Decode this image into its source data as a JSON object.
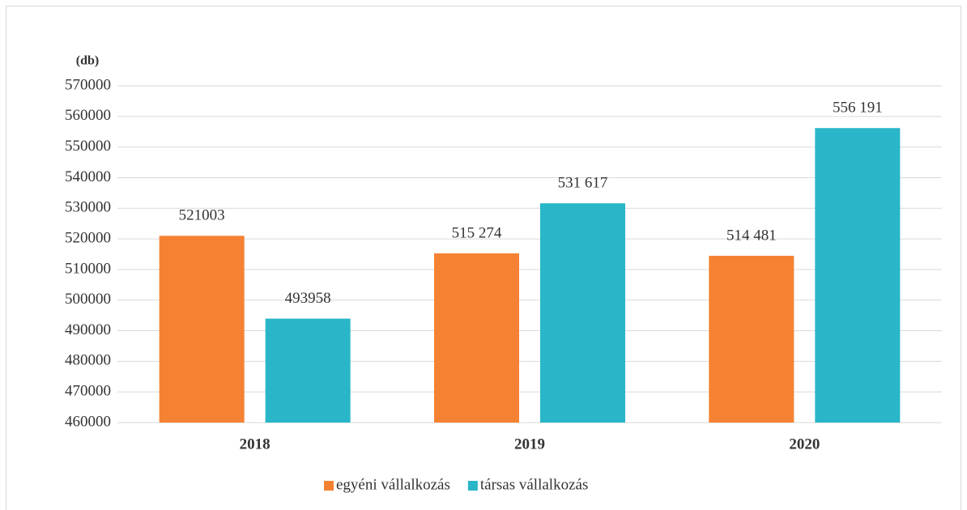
{
  "chart_data": {
    "type": "bar",
    "y_label": "(db)",
    "categories": [
      "2018",
      "2019",
      "2020"
    ],
    "series": [
      {
        "name": "egyéni vállalkozás",
        "color": "#f58232",
        "values": [
          521003,
          515274,
          514481
        ],
        "value_labels": [
          "521003",
          "515 274",
          "514 481"
        ]
      },
      {
        "name": "társas vállalkozás",
        "color": "#29b6c8",
        "values": [
          493958,
          531617,
          556191
        ],
        "value_labels": [
          "493958",
          "531 617",
          "556 191"
        ]
      }
    ],
    "ylim": [
      460000,
      570000
    ],
    "yticks": [
      460000,
      470000,
      480000,
      490000,
      500000,
      510000,
      520000,
      530000,
      540000,
      550000,
      560000,
      570000
    ],
    "grid": true,
    "legend": "bottom"
  }
}
